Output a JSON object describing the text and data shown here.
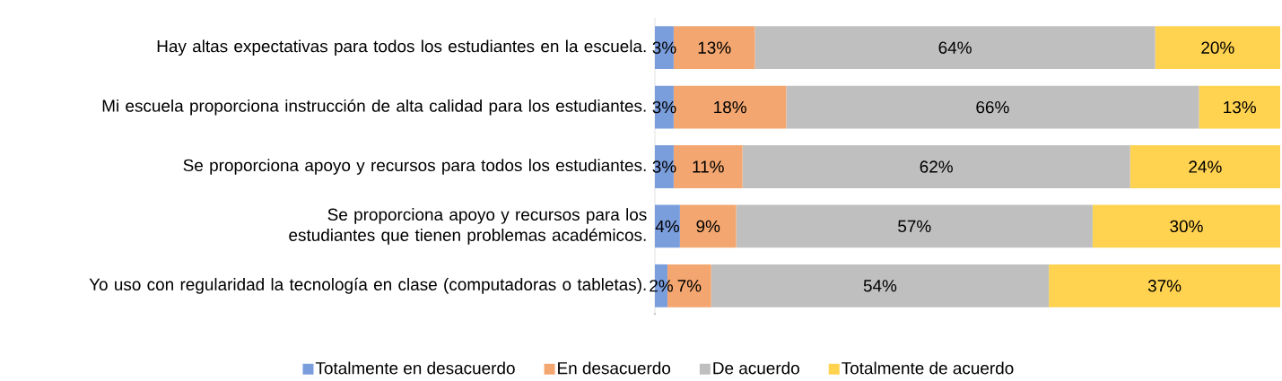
{
  "chart_data": {
    "type": "bar",
    "orientation": "horizontal",
    "stacked": true,
    "legend": "bottom",
    "categories": [
      "Hay altas expectativas para todos los estudiantes en la escuela.",
      "Mi escuela proporciona instrucción de alta calidad para los estudiantes.",
      "Se proporciona apoyo y recursos para todos los estudiantes.",
      "Se proporciona apoyo y recursos para los estudiantes que tienen problemas académicos.",
      "Yo uso con regularidad la tecnología en clase (computadoras o tabletas)."
    ],
    "series": [
      {
        "name": "Totalmente en desacuerdo",
        "color": "#7a9ddc",
        "values": [
          3,
          3,
          3,
          4,
          2
        ],
        "value_labels": [
          "3%",
          "3%",
          "3%",
          "4%",
          "2%"
        ]
      },
      {
        "name": "En desacuerdo",
        "color": "#f3a66f",
        "values": [
          13,
          18,
          11,
          9,
          7
        ],
        "value_labels": [
          "13%",
          "18%",
          "11%",
          "9%",
          "7%"
        ]
      },
      {
        "name": "De acuerdo",
        "color": "#bfbfbf",
        "values": [
          64,
          66,
          62,
          57,
          54
        ],
        "value_labels": [
          "64%",
          "66%",
          "62%",
          "57%",
          "54%"
        ]
      },
      {
        "name": "Totalmente de acuerdo",
        "color": "#ffd24f",
        "values": [
          20,
          13,
          24,
          30,
          37
        ],
        "value_labels": [
          "20%",
          "13%",
          "24%",
          "30%",
          "37%"
        ]
      }
    ]
  }
}
